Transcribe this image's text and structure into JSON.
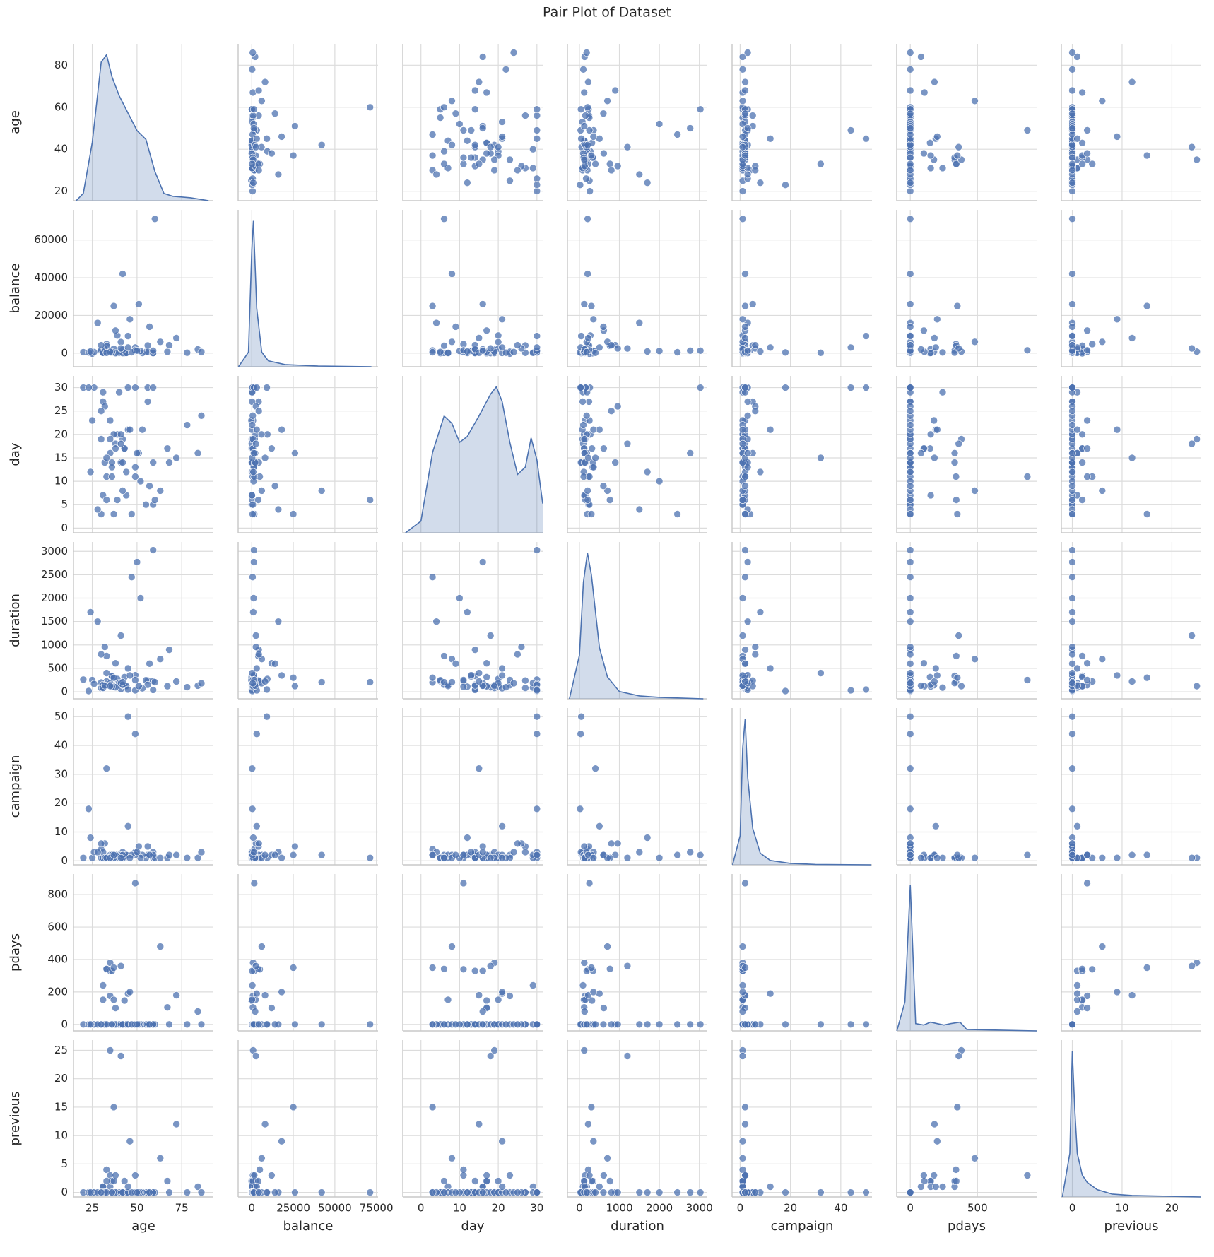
{
  "chart_data": {
    "type": "pair",
    "title": "Pair Plot of Dataset",
    "color": "#4c72b0",
    "grid": true,
    "variables": [
      {
        "name": "age",
        "xlim": [
          14.5,
          92.7
        ],
        "ylim": [
          15.5,
          90.2
        ],
        "xticks": [
          25,
          50,
          75
        ],
        "yticks": [
          20,
          40,
          60,
          80
        ],
        "kde": {
          "x": [
            16,
            20,
            25,
            30,
            33,
            36,
            40,
            45,
            50,
            55,
            60,
            65,
            70,
            80,
            90
          ],
          "y": [
            0,
            0.05,
            0.4,
            0.95,
            1.0,
            0.85,
            0.72,
            0.6,
            0.48,
            0.42,
            0.2,
            0.05,
            0.03,
            0.02,
            0
          ]
        }
      },
      {
        "name": "balance",
        "xlim": [
          -8200,
          76000
        ],
        "ylim": [
          -7200,
          76000
        ],
        "xticks": [
          0,
          25000,
          50000,
          75000
        ],
        "yticks": [
          0,
          20000,
          40000,
          60000
        ],
        "kde": {
          "x": [
            -8000,
            -2000,
            0,
            1000,
            3000,
            6000,
            10000,
            20000,
            40000,
            72000
          ],
          "y": [
            0,
            0.1,
            0.8,
            1,
            0.4,
            0.1,
            0.04,
            0.015,
            0.005,
            0
          ]
        }
      },
      {
        "name": "day",
        "xlim": [
          -4.7,
          31.5
        ],
        "ylim": [
          -1,
          32.5
        ],
        "xticks": [
          0,
          10,
          20,
          30
        ],
        "yticks": [
          0,
          5,
          10,
          15,
          20,
          25,
          30
        ],
        "kde": {
          "x": [
            -4,
            0,
            3,
            6,
            8,
            10,
            12,
            15,
            18,
            19.5,
            21,
            23,
            25,
            27,
            28.5,
            30,
            31.5
          ],
          "y": [
            0,
            0.08,
            0.55,
            0.8,
            0.75,
            0.62,
            0.66,
            0.8,
            0.95,
            1.0,
            0.9,
            0.62,
            0.4,
            0.45,
            0.65,
            0.5,
            0.2
          ]
        }
      },
      {
        "name": "duration",
        "xlim": [
          -300,
          3200
        ],
        "ylim": [
          -150,
          3200
        ],
        "xticks": [
          0,
          1000,
          2000,
          3000
        ],
        "yticks": [
          0,
          500,
          1000,
          1500,
          2000,
          2500,
          3000
        ],
        "kde": {
          "x": [
            -250,
            0,
            100,
            200,
            300,
            500,
            700,
            1000,
            1500,
            2000,
            3100
          ],
          "y": [
            0,
            0.3,
            0.8,
            1,
            0.85,
            0.35,
            0.15,
            0.05,
            0.02,
            0.01,
            0
          ]
        }
      },
      {
        "name": "campaign",
        "xlim": [
          -3.2,
          52.4
        ],
        "ylim": [
          -1.4,
          53
        ],
        "xticks": [
          0,
          20,
          40
        ],
        "yticks": [
          0,
          10,
          20,
          30,
          40,
          50
        ],
        "kde": {
          "x": [
            -3,
            0,
            1,
            2,
            3,
            5,
            8,
            12,
            20,
            30,
            52
          ],
          "y": [
            0,
            0.2,
            0.8,
            1,
            0.6,
            0.25,
            0.08,
            0.03,
            0.01,
            0.003,
            0
          ]
        }
      },
      {
        "name": "pdays",
        "xlim": [
          -101,
          940
        ],
        "ylim": [
          -40,
          927
        ],
        "xticks": [
          0,
          500
        ],
        "yticks": [
          0,
          200,
          400,
          600,
          800
        ],
        "kde": {
          "x": [
            -100,
            -40,
            0,
            40,
            100,
            150,
            200,
            250,
            300,
            370,
            420,
            940
          ],
          "y": [
            0,
            0.2,
            1,
            0.05,
            0.04,
            0.06,
            0.05,
            0.04,
            0.05,
            0.06,
            0.01,
            0
          ]
        }
      },
      {
        "name": "previous",
        "xlim": [
          -2.2,
          25.9
        ],
        "ylim": [
          -0.8,
          26.8
        ],
        "xticks": [
          0,
          10,
          20
        ],
        "yticks": [
          0,
          5,
          10,
          15,
          20,
          25
        ],
        "kde": {
          "x": [
            -2,
            -0.5,
            0,
            0.5,
            1,
            2,
            3,
            5,
            8,
            12,
            25.9
          ],
          "y": [
            0,
            0.3,
            1,
            0.6,
            0.3,
            0.15,
            0.1,
            0.05,
            0.02,
            0.01,
            0
          ]
        }
      }
    ],
    "points": [
      [
        30,
        1800,
        19,
        80,
        1,
        0,
        0
      ],
      [
        33,
        4800,
        11,
        220,
        1,
        340,
        4
      ],
      [
        35,
        1350,
        16,
        185,
        1,
        330,
        1
      ],
      [
        30,
        1476,
        3,
        199,
        4,
        0,
        0
      ],
      [
        59,
        0,
        5,
        226,
        1,
        0,
        0
      ],
      [
        35,
        747,
        23,
        141,
        2,
        176,
        3
      ],
      [
        36,
        307,
        14,
        341,
        1,
        330,
        2
      ],
      [
        39,
        147,
        6,
        151,
        2,
        0,
        0
      ],
      [
        41,
        221,
        14,
        57,
        2,
        0,
        0
      ],
      [
        43,
        -88,
        17,
        313,
        1,
        147,
        2
      ],
      [
        39,
        9374,
        20,
        273,
        1,
        0,
        0
      ],
      [
        43,
        264,
        17,
        113,
        2,
        0,
        0
      ],
      [
        36,
        1109,
        13,
        328,
        2,
        0,
        0
      ],
      [
        20,
        502,
        30,
        261,
        1,
        0,
        0
      ],
      [
        31,
        360,
        29,
        89,
        1,
        241,
        1
      ],
      [
        40,
        194,
        29,
        189,
        2,
        0,
        0
      ],
      [
        56,
        4073,
        27,
        239,
        5,
        0,
        0
      ],
      [
        37,
        2317,
        20,
        114,
        1,
        152,
        2
      ],
      [
        25,
        -221,
        23,
        250,
        1,
        0,
        0
      ],
      [
        31,
        132,
        7,
        148,
        1,
        152,
        1
      ],
      [
        38,
        0,
        18,
        96,
        2,
        0,
        0
      ],
      [
        42,
        16,
        19,
        140,
        3,
        0,
        0
      ],
      [
        44,
        106,
        12,
        109,
        2,
        0,
        0
      ],
      [
        44,
        93,
        7,
        125,
        2,
        0,
        0
      ],
      [
        26,
        543,
        30,
        169,
        3,
        0,
        0
      ],
      [
        41,
        5883,
        20,
        182,
        2,
        0,
        0
      ],
      [
        55,
        627,
        5,
        247,
        1,
        0,
        0
      ],
      [
        67,
        696,
        17,
        119,
        1,
        105,
        2
      ],
      [
        56,
        784,
        30,
        149,
        2,
        0,
        0
      ],
      [
        53,
        105,
        21,
        74,
        2,
        0,
        0
      ],
      [
        68,
        4189,
        14,
        897,
        2,
        0,
        0
      ],
      [
        31,
        171,
        27,
        81,
        3,
        0,
        0
      ],
      [
        59,
        42,
        14,
        40,
        3,
        0,
        0
      ],
      [
        32,
        2536,
        26,
        958,
        6,
        0,
        0
      ],
      [
        49,
        1235,
        13,
        354,
        3,
        0,
        0
      ],
      [
        42,
        1811,
        14,
        150,
        1,
        0,
        0
      ],
      [
        78,
        229,
        22,
        97,
        1,
        0,
        0
      ],
      [
        32,
        2089,
        14,
        132,
        1,
        0,
        0
      ],
      [
        33,
        3935,
        6,
        765,
        1,
        342,
        2
      ],
      [
        23,
        363,
        30,
        16,
        18,
        0,
        0
      ],
      [
        38,
        11971,
        17,
        609,
        2,
        101,
        3
      ],
      [
        36,
        553,
        11,
        106,
        2,
        0,
        0
      ],
      [
        52,
        1117,
        10,
        2000,
        1,
        0,
        0
      ],
      [
        60,
        71188,
        6,
        205,
        1,
        0,
        0
      ],
      [
        42,
        42045,
        8,
        205,
        2,
        0,
        0
      ],
      [
        59,
        1321,
        30,
        3025,
        2,
        0,
        0
      ],
      [
        45,
        9051,
        30,
        47,
        50,
        0,
        0
      ],
      [
        49,
        3000,
        30,
        30,
        44,
        0,
        0
      ],
      [
        49,
        1500,
        11,
        250,
        2,
        871,
        3
      ],
      [
        35,
        800,
        19,
        120,
        1,
        380,
        25
      ],
      [
        41,
        2500,
        18,
        1200,
        1,
        360,
        24
      ],
      [
        51,
        26000,
        16,
        120,
        5,
        0,
        0
      ],
      [
        84,
        2000,
        16,
        130,
        1,
        80,
        1
      ],
      [
        86,
        600,
        24,
        180,
        3,
        0,
        0
      ],
      [
        28,
        16000,
        4,
        1500,
        3,
        0,
        0
      ],
      [
        47,
        500,
        3,
        2450,
        2,
        0,
        0
      ],
      [
        33,
        200,
        15,
        400,
        32,
        0,
        0
      ],
      [
        45,
        3000,
        21,
        500,
        12,
        190,
        1
      ],
      [
        63,
        6000,
        8,
        700,
        1,
        480,
        6
      ],
      [
        24,
        900,
        12,
        1700,
        8,
        0,
        0
      ],
      [
        37,
        25000,
        3,
        300,
        2,
        350,
        15
      ],
      [
        72,
        8000,
        15,
        220,
        2,
        180,
        12
      ],
      [
        50,
        1300,
        16,
        2770,
        3,
        0,
        0
      ],
      [
        57,
        14000,
        9,
        600,
        2,
        0,
        0
      ],
      [
        46,
        18000,
        21,
        350,
        1,
        200,
        9
      ],
      [
        30,
        4200,
        25,
        800,
        6,
        0,
        0
      ]
    ]
  }
}
